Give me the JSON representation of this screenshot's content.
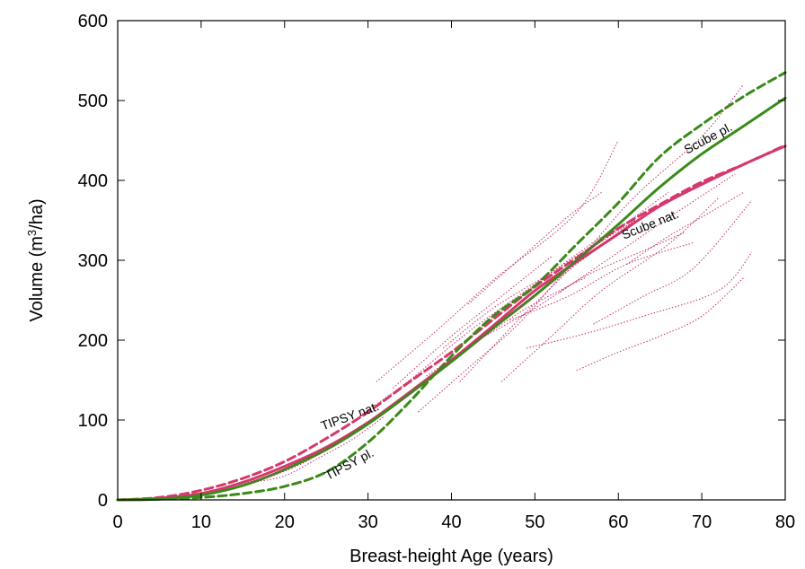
{
  "chart_data": {
    "type": "line",
    "title": "",
    "xlabel": "Breast-height Age (years)",
    "ylabel_main": "Volume (m",
    "ylabel_sup": "3",
    "ylabel_tail": "/ha)",
    "xlim": [
      0,
      80
    ],
    "ylim": [
      0,
      600
    ],
    "xticks": [
      0,
      10,
      20,
      30,
      40,
      50,
      60,
      70,
      80
    ],
    "yticks": [
      0,
      100,
      200,
      300,
      400,
      500,
      600
    ],
    "grid": false,
    "colors": {
      "natural": "#d6386a",
      "planted": "#3a8a1a",
      "observed": "#c0306a"
    },
    "series": [
      {
        "name": "Scube nat.",
        "style": "solid",
        "color": "natural",
        "x": [
          0,
          5,
          10,
          15,
          20,
          25,
          30,
          35,
          40,
          45,
          50,
          55,
          60,
          65,
          70,
          75,
          80
        ],
        "y": [
          0,
          2,
          8,
          22,
          42,
          66,
          97,
          135,
          175,
          218,
          262,
          298,
          333,
          368,
          395,
          420,
          443
        ]
      },
      {
        "name": "TIPSY nat.",
        "style": "dashed",
        "color": "natural",
        "x": [
          0,
          5,
          10,
          15,
          20,
          25,
          30,
          35,
          40,
          45,
          50,
          55,
          60,
          65,
          70,
          75,
          80
        ],
        "y": [
          0,
          3,
          12,
          27,
          48,
          77,
          110,
          148,
          185,
          226,
          267,
          303,
          340,
          370,
          398,
          420,
          444
        ]
      },
      {
        "name": "Scube pl.",
        "style": "solid",
        "color": "planted",
        "x": [
          0,
          5,
          10,
          15,
          20,
          25,
          30,
          35,
          40,
          45,
          50,
          55,
          60,
          65,
          70,
          75,
          80
        ],
        "y": [
          0,
          1,
          6,
          18,
          38,
          63,
          95,
          133,
          173,
          215,
          256,
          300,
          345,
          392,
          433,
          468,
          503
        ]
      },
      {
        "name": "TIPSY pl.",
        "style": "dashed",
        "color": "planted",
        "x": [
          0,
          5,
          10,
          15,
          20,
          25,
          30,
          35,
          40,
          45,
          50,
          55,
          60,
          65,
          70,
          75,
          80
        ],
        "y": [
          0,
          1,
          3,
          8,
          17,
          35,
          72,
          123,
          180,
          230,
          268,
          320,
          372,
          430,
          470,
          505,
          535
        ]
      },
      {
        "style": "dotted",
        "color": "observed",
        "segments": [
          [
            [
              31,
              148
            ],
            [
              38,
              210
            ],
            [
              45,
              275
            ],
            [
              55,
              360
            ],
            [
              60,
              450
            ]
          ],
          [
            [
              36,
              110
            ],
            [
              42,
              165
            ],
            [
              48,
              220
            ],
            [
              55,
              300
            ],
            [
              62,
              350
            ]
          ],
          [
            [
              41,
              148
            ],
            [
              48,
              225
            ],
            [
              55,
              298
            ],
            [
              62,
              380
            ],
            [
              70,
              455
            ],
            [
              75,
              520
            ]
          ],
          [
            [
              46,
              148
            ],
            [
              52,
              205
            ],
            [
              58,
              262
            ],
            [
              66,
              320
            ],
            [
              72,
              378
            ]
          ],
          [
            [
              49,
              190
            ],
            [
              56,
              208
            ],
            [
              63,
              230
            ],
            [
              72,
              262
            ],
            [
              76,
              310
            ]
          ],
          [
            [
              55,
              162
            ],
            [
              60,
              185
            ],
            [
              65,
              205
            ],
            [
              70,
              230
            ],
            [
              75,
              278
            ]
          ],
          [
            [
              39,
              190
            ],
            [
              45,
              240
            ],
            [
              52,
              285
            ],
            [
              60,
              340
            ],
            [
              66,
              385
            ]
          ],
          [
            [
              34,
              125
            ],
            [
              40,
              175
            ],
            [
              47,
              232
            ],
            [
              55,
              295
            ],
            [
              62,
              350
            ]
          ],
          [
            [
              44,
              205
            ],
            [
              50,
              240
            ],
            [
              56,
              280
            ],
            [
              63,
              312
            ],
            [
              68,
              335
            ]
          ],
          [
            [
              29,
              105
            ],
            [
              35,
              150
            ],
            [
              42,
              210
            ],
            [
              50,
              270
            ],
            [
              58,
              330
            ]
          ],
          [
            [
              33,
              140
            ],
            [
              40,
              205
            ],
            [
              46,
              255
            ],
            [
              52,
              305
            ]
          ],
          [
            [
              53,
              260
            ],
            [
              60,
              310
            ],
            [
              67,
              360
            ],
            [
              74,
              408
            ]
          ],
          [
            [
              47,
              225
            ],
            [
              54,
              255
            ],
            [
              61,
              295
            ],
            [
              69,
              322
            ]
          ],
          [
            [
              37,
              155
            ],
            [
              43,
              198
            ],
            [
              49,
              240
            ],
            [
              56,
              278
            ]
          ],
          [
            [
              16,
              22
            ],
            [
              20,
              30
            ],
            [
              24,
              52
            ],
            [
              28,
              75
            ],
            [
              32,
              105
            ]
          ],
          [
            [
              18,
              28
            ],
            [
              22,
              45
            ],
            [
              26,
              70
            ],
            [
              30,
              98
            ]
          ],
          [
            [
              13,
              15
            ],
            [
              18,
              30
            ],
            [
              23,
              55
            ]
          ],
          [
            [
              42,
              245
            ],
            [
              48,
              300
            ],
            [
              54,
              355
            ],
            [
              58,
              385
            ]
          ],
          [
            [
              57,
              220
            ],
            [
              63,
              255
            ],
            [
              69,
              290
            ],
            [
              76,
              375
            ]
          ],
          [
            [
              61,
              295
            ],
            [
              66,
              330
            ],
            [
              71,
              360
            ],
            [
              75,
              385
            ]
          ]
        ]
      }
    ],
    "annotations": [
      {
        "text": "TIPSY nat.",
        "x": 28,
        "y": 100,
        "angle": -20
      },
      {
        "text": "TIPSY pl.",
        "x": 28,
        "y": 40,
        "angle": -28
      },
      {
        "text": "Scube pl.",
        "x": 71,
        "y": 448,
        "angle": -28
      },
      {
        "text": "Scube nat.",
        "x": 64,
        "y": 340,
        "angle": -22
      }
    ]
  }
}
